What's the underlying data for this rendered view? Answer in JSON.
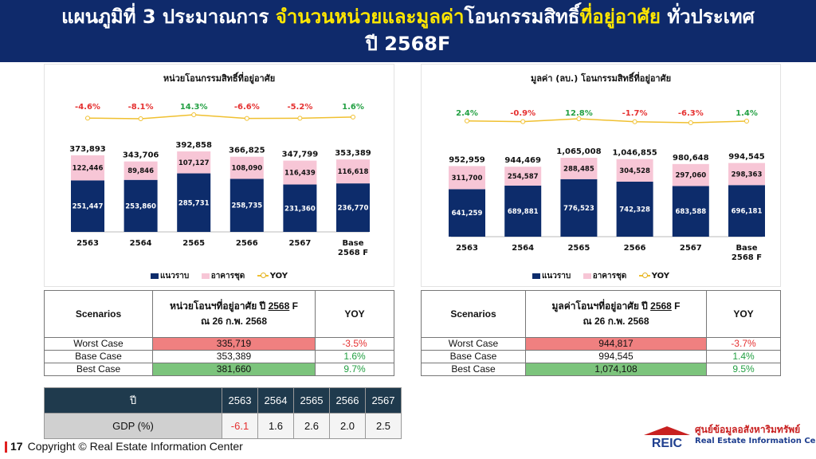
{
  "header": {
    "line1_a": "แผนภูมิที่ 3 ประมาณการ ",
    "line1_b": "จำนวนหน่วยและมูลค่า",
    "line1_c": "โอนกรรมสิทธิ์",
    "line1_d": "ที่อยู่อาศัย",
    "line1_e": " ทั่วประเทศ",
    "line2": "ปี 2568F"
  },
  "legend": {
    "s1": "แนวราบ",
    "s2": "อาคารชุด",
    "s3": "YOY"
  },
  "colors": {
    "s1": "#0d2c6b",
    "s2": "#f7c6d6",
    "yoy_line": "#f0c030",
    "neg": "#e53030",
    "pos": "#23a043"
  },
  "chart_data": [
    {
      "type": "bar",
      "title": "หน่วยโอนกรรมสิทธิ์ที่อยู่อาศัย",
      "categories": [
        "2563",
        "2564",
        "2565",
        "2566",
        "2567",
        "Base 2568 F"
      ],
      "series": [
        {
          "name": "แนวราบ",
          "values": [
            251447,
            253860,
            285731,
            258735,
            231360,
            236770
          ],
          "labels": [
            "251,447",
            "253,860",
            "285,731",
            "258,735",
            "231,360",
            "236,770"
          ]
        },
        {
          "name": "อาคารชุด",
          "values": [
            122446,
            89846,
            107127,
            108090,
            116439,
            116618
          ],
          "labels": [
            "122,446",
            "89,846",
            "107,127",
            "108,090",
            "116,439",
            "116,618"
          ]
        },
        {
          "name": "YOY",
          "values": [
            -4.6,
            -8.1,
            14.3,
            -6.6,
            -5.2,
            1.6
          ],
          "labels": [
            "-4.6%",
            "-8.1%",
            "14.3%",
            "-6.6%",
            "-5.2%",
            "1.6%"
          ]
        }
      ],
      "totals": [
        373893,
        343706,
        392858,
        366825,
        347799,
        353389
      ],
      "total_labels": [
        "373,893",
        "343,706",
        "392,858",
        "366,825",
        "347,799",
        "353,389"
      ],
      "legend": "bottom"
    },
    {
      "type": "bar",
      "title": "มูลค่า (ลบ.) โอนกรรมสิทธิ์ที่อยู่อาศัย",
      "categories": [
        "2563",
        "2564",
        "2565",
        "2566",
        "2567",
        "Base 2568 F"
      ],
      "series": [
        {
          "name": "แนวราบ",
          "values": [
            641259,
            689881,
            776523,
            742328,
            683588,
            696181
          ],
          "labels": [
            "641,259",
            "689,881",
            "776,523",
            "742,328",
            "683,588",
            "696,181"
          ]
        },
        {
          "name": "อาคารชุด",
          "values": [
            311700,
            254587,
            288485,
            304528,
            297060,
            298363
          ],
          "labels": [
            "311,700",
            "254,587",
            "288,485",
            "304,528",
            "297,060",
            "298,363"
          ]
        },
        {
          "name": "YOY",
          "values": [
            2.4,
            -0.9,
            12.8,
            -1.7,
            -6.3,
            1.4
          ],
          "labels": [
            "2.4%",
            "-0.9%",
            "12.8%",
            "-1.7%",
            "-6.3%",
            "1.4%"
          ]
        }
      ],
      "totals": [
        952959,
        944469,
        1065008,
        1046855,
        980648,
        994545
      ],
      "total_labels": [
        "952,959",
        "944,469",
        "1,065,008",
        "1,046,855",
        "980,648",
        "994,545"
      ],
      "legend": "bottom"
    }
  ],
  "table_units": {
    "h1": "Scenarios",
    "h2a": "หน่วยโอนฯที่อยู่อาศัย ปี ",
    "h2y": "2568",
    "h2b": " F",
    "h2c": "ณ 26 ก.พ. 2568",
    "h3": "YOY",
    "rows": [
      {
        "name": "Worst Case",
        "value": "335,719",
        "yoy": "-3.5%"
      },
      {
        "name": "Base Case",
        "value": "353,389",
        "yoy": "1.6%"
      },
      {
        "name": "Best Case",
        "value": "381,660",
        "yoy": "9.7%"
      }
    ]
  },
  "table_value": {
    "h1": "Scenarios",
    "h2a": "มูลค่าโอนฯที่อยู่อาศัย ปี ",
    "h2y": "2568",
    "h2b": " F",
    "h2c": "ณ 26 ก.พ. 2568",
    "h3": "YOY",
    "rows": [
      {
        "name": "Worst Case",
        "value": "944,817",
        "yoy": "-3.7%"
      },
      {
        "name": "Base Case",
        "value": "994,545",
        "yoy": "1.4%"
      },
      {
        "name": "Best Case",
        "value": "1,074,108",
        "yoy": "9.5%"
      }
    ]
  },
  "gdp": {
    "year_label": "ปี",
    "years": [
      "2563",
      "2564",
      "2565",
      "2566",
      "2567"
    ],
    "row_label": "GDP (%)",
    "values": [
      "-6.1",
      "1.6",
      "2.6",
      "2.0",
      "2.5"
    ]
  },
  "footer": {
    "page": "17",
    "copyright": "Copyright © Real Estate Information Center"
  },
  "logo": {
    "mark": "REIC",
    "thai": "ศูนย์ข้อมูลอสังหาริมทรัพย์",
    "eng": "Real Estate Information Center"
  }
}
